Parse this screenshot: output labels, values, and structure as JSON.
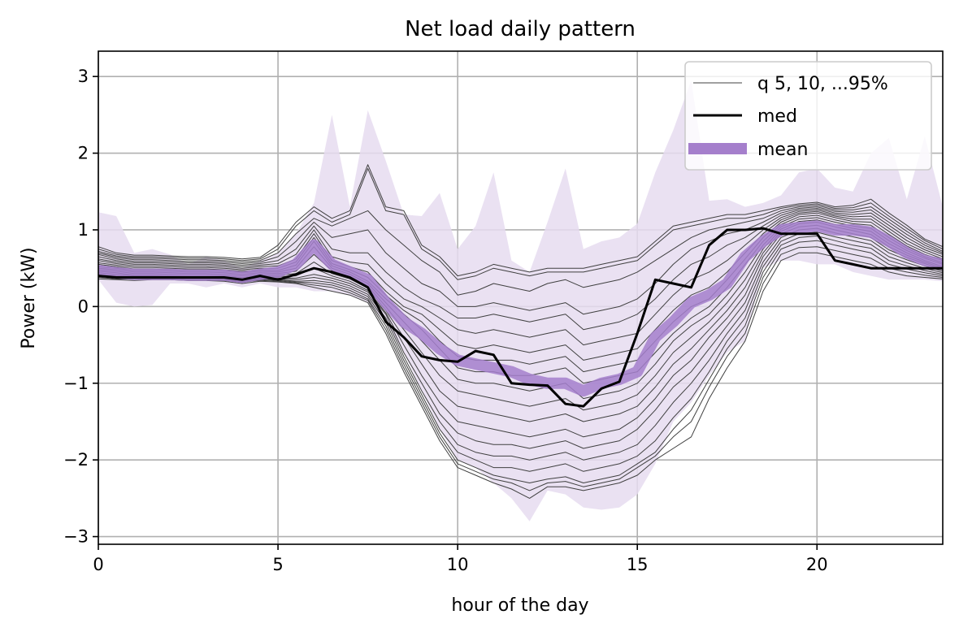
{
  "chart_data": {
    "type": "line",
    "title": "Net load daily pattern",
    "xlabel": "hour of the day",
    "ylabel": "Power (kW)",
    "xlim": [
      0,
      23.5
    ],
    "ylim": [
      -3.1,
      3.33
    ],
    "xticks": [
      0,
      5,
      10,
      15,
      20
    ],
    "yticks": [
      -3,
      -2,
      -1,
      0,
      1,
      2,
      3
    ],
    "ytick_labels": [
      "−3",
      "−2",
      "−1",
      "0",
      "1",
      "2",
      "3"
    ],
    "grid": true,
    "legend_position": "top-right",
    "legend": [
      "q 5, 10, ...95%",
      "med",
      "mean"
    ],
    "colors": {
      "quantile": "#404040",
      "median": "#000000",
      "mean": "#a57fcc",
      "band": "#e6dcf0"
    },
    "x": [
      0,
      0.5,
      1,
      1.5,
      2,
      2.5,
      3,
      3.5,
      4,
      4.5,
      5,
      5.5,
      6,
      6.5,
      7,
      7.5,
      8,
      8.5,
      9,
      9.5,
      10,
      10.5,
      11,
      11.5,
      12,
      12.5,
      13,
      13.5,
      14,
      14.5,
      15,
      15.5,
      16,
      16.5,
      17,
      17.5,
      18,
      18.5,
      19,
      19.5,
      20,
      20.5,
      21,
      21.5,
      22,
      22.5,
      23,
      23.5
    ],
    "band": {
      "upper": [
        1.23,
        1.18,
        0.7,
        0.75,
        0.68,
        0.55,
        0.65,
        0.6,
        0.5,
        0.6,
        0.7,
        0.95,
        1.35,
        2.5,
        1.3,
        2.56,
        1.9,
        1.2,
        1.18,
        1.48,
        0.75,
        1.05,
        1.75,
        0.6,
        0.45,
        1.1,
        1.8,
        0.75,
        0.85,
        0.9,
        1.08,
        1.75,
        2.3,
        2.95,
        1.38,
        1.4,
        1.3,
        1.35,
        1.45,
        1.75,
        1.8,
        1.55,
        1.5,
        2.0,
        2.2,
        1.4,
        2.22,
        1.3
      ],
      "lower": [
        0.35,
        0.05,
        0.0,
        0.02,
        0.3,
        0.3,
        0.25,
        0.3,
        0.25,
        0.3,
        0.25,
        0.25,
        0.2,
        0.2,
        0.15,
        0.05,
        -0.2,
        -0.6,
        -1.1,
        -1.6,
        -2.0,
        -2.1,
        -2.3,
        -2.5,
        -2.8,
        -2.4,
        -2.45,
        -2.62,
        -2.65,
        -2.62,
        -2.45,
        -2.05,
        -1.5,
        -1.25,
        -0.9,
        -0.6,
        -0.45,
        0.5,
        0.6,
        0.6,
        0.55,
        0.55,
        0.45,
        0.4,
        0.35,
        0.35,
        0.35,
        0.33
      ]
    },
    "quantiles": [
      [
        0.36,
        0.35,
        0.34,
        0.35,
        0.35,
        0.34,
        0.34,
        0.33,
        0.3,
        0.33,
        0.32,
        0.3,
        0.25,
        0.2,
        0.15,
        0.05,
        -0.35,
        -0.85,
        -1.3,
        -1.75,
        -2.1,
        -2.2,
        -2.3,
        -2.38,
        -2.5,
        -2.35,
        -2.35,
        -2.4,
        -2.35,
        -2.3,
        -2.2,
        -2.0,
        -1.85,
        -1.7,
        -1.2,
        -0.8,
        -0.45,
        0.2,
        0.6,
        0.7,
        0.7,
        0.65,
        0.6,
        0.55,
        0.45,
        0.4,
        0.38,
        0.36
      ],
      [
        0.38,
        0.36,
        0.36,
        0.36,
        0.36,
        0.35,
        0.35,
        0.34,
        0.32,
        0.34,
        0.33,
        0.31,
        0.28,
        0.25,
        0.18,
        0.08,
        -0.3,
        -0.8,
        -1.25,
        -1.7,
        -2.05,
        -2.15,
        -2.25,
        -2.3,
        -2.4,
        -2.3,
        -2.28,
        -2.35,
        -2.3,
        -2.25,
        -2.1,
        -1.95,
        -1.7,
        -1.5,
        -1.05,
        -0.65,
        -0.35,
        0.3,
        0.68,
        0.77,
        0.78,
        0.73,
        0.68,
        0.63,
        0.5,
        0.45,
        0.41,
        0.38
      ],
      [
        0.4,
        0.38,
        0.37,
        0.37,
        0.37,
        0.36,
        0.36,
        0.35,
        0.33,
        0.35,
        0.34,
        0.32,
        0.31,
        0.28,
        0.21,
        0.1,
        -0.25,
        -0.75,
        -1.2,
        -1.65,
        -2.0,
        -2.1,
        -2.2,
        -2.25,
        -2.3,
        -2.25,
        -2.22,
        -2.3,
        -2.25,
        -2.2,
        -2.05,
        -1.9,
        -1.6,
        -1.35,
        -0.95,
        -0.55,
        -0.25,
        0.38,
        0.75,
        0.84,
        0.86,
        0.8,
        0.75,
        0.7,
        0.55,
        0.49,
        0.44,
        0.4
      ],
      [
        0.42,
        0.4,
        0.39,
        0.39,
        0.38,
        0.37,
        0.37,
        0.36,
        0.34,
        0.36,
        0.35,
        0.33,
        0.34,
        0.31,
        0.24,
        0.13,
        -0.2,
        -0.7,
        -1.15,
        -1.6,
        -1.9,
        -2.0,
        -2.1,
        -2.1,
        -2.15,
        -2.1,
        -2.05,
        -2.15,
        -2.1,
        -2.05,
        -1.95,
        -1.75,
        -1.45,
        -1.2,
        -0.85,
        -0.45,
        -0.15,
        0.45,
        0.8,
        0.9,
        0.92,
        0.86,
        0.8,
        0.76,
        0.6,
        0.53,
        0.47,
        0.42
      ],
      [
        0.44,
        0.42,
        0.4,
        0.4,
        0.39,
        0.38,
        0.38,
        0.37,
        0.35,
        0.37,
        0.36,
        0.35,
        0.38,
        0.34,
        0.27,
        0.16,
        -0.15,
        -0.65,
        -1.1,
        -1.5,
        -1.8,
        -1.9,
        -1.95,
        -1.95,
        -2.0,
        -1.95,
        -1.9,
        -2.0,
        -1.95,
        -1.9,
        -1.8,
        -1.55,
        -1.25,
        -1.0,
        -0.7,
        -0.35,
        -0.05,
        0.52,
        0.85,
        0.95,
        0.97,
        0.91,
        0.86,
        0.81,
        0.65,
        0.57,
        0.5,
        0.44
      ],
      [
        0.46,
        0.44,
        0.41,
        0.41,
        0.4,
        0.39,
        0.39,
        0.38,
        0.36,
        0.38,
        0.37,
        0.37,
        0.42,
        0.37,
        0.3,
        0.19,
        -0.1,
        -0.6,
        -1.0,
        -1.4,
        -1.65,
        -1.75,
        -1.8,
        -1.8,
        -1.85,
        -1.8,
        -1.75,
        -1.85,
        -1.8,
        -1.75,
        -1.6,
        -1.35,
        -1.05,
        -0.85,
        -0.55,
        -0.25,
        0.05,
        0.58,
        0.9,
        1.0,
        1.02,
        0.96,
        0.91,
        0.86,
        0.7,
        0.61,
        0.53,
        0.46
      ],
      [
        0.48,
        0.46,
        0.43,
        0.43,
        0.42,
        0.41,
        0.41,
        0.4,
        0.38,
        0.4,
        0.39,
        0.4,
        0.5,
        0.4,
        0.33,
        0.21,
        -0.08,
        -0.5,
        -0.9,
        -1.25,
        -1.5,
        -1.55,
        -1.6,
        -1.65,
        -1.7,
        -1.65,
        -1.6,
        -1.7,
        -1.65,
        -1.6,
        -1.45,
        -1.2,
        -0.9,
        -0.7,
        -0.4,
        -0.15,
        0.15,
        0.65,
        0.95,
        1.04,
        1.06,
        1.0,
        0.95,
        0.9,
        0.74,
        0.64,
        0.56,
        0.48
      ],
      [
        0.5,
        0.48,
        0.45,
        0.45,
        0.44,
        0.43,
        0.43,
        0.42,
        0.4,
        0.42,
        0.41,
        0.43,
        0.58,
        0.43,
        0.36,
        0.24,
        -0.05,
        -0.4,
        -0.75,
        -1.1,
        -1.3,
        -1.35,
        -1.4,
        -1.45,
        -1.5,
        -1.45,
        -1.4,
        -1.5,
        -1.45,
        -1.4,
        -1.3,
        -1.05,
        -0.75,
        -0.55,
        -0.3,
        -0.05,
        0.25,
        0.7,
        0.98,
        1.08,
        1.1,
        1.04,
        0.99,
        0.94,
        0.78,
        0.67,
        0.58,
        0.5
      ],
      [
        0.52,
        0.5,
        0.47,
        0.47,
        0.46,
        0.45,
        0.45,
        0.44,
        0.42,
        0.44,
        0.43,
        0.46,
        0.68,
        0.47,
        0.39,
        0.27,
        0.0,
        -0.3,
        -0.6,
        -0.9,
        -1.1,
        -1.15,
        -1.2,
        -1.25,
        -1.3,
        -1.25,
        -1.2,
        -1.35,
        -1.3,
        -1.25,
        -1.15,
        -0.9,
        -0.6,
        -0.4,
        -0.2,
        0.05,
        0.35,
        0.75,
        1.01,
        1.11,
        1.13,
        1.07,
        1.02,
        0.98,
        0.82,
        0.7,
        0.6,
        0.52
      ],
      [
        0.55,
        0.52,
        0.49,
        0.49,
        0.48,
        0.47,
        0.47,
        0.46,
        0.44,
        0.46,
        0.45,
        0.5,
        0.78,
        0.5,
        0.42,
        0.3,
        0.05,
        -0.2,
        -0.45,
        -0.7,
        -0.95,
        -1.0,
        -1.0,
        -1.05,
        -1.1,
        -1.05,
        -1.0,
        -1.2,
        -1.15,
        -1.1,
        -1.0,
        -0.75,
        -0.45,
        -0.25,
        -0.1,
        0.15,
        0.45,
        0.8,
        1.04,
        1.14,
        1.16,
        1.1,
        1.05,
        1.02,
        0.86,
        0.73,
        0.63,
        0.55
      ],
      [
        0.57,
        0.54,
        0.51,
        0.51,
        0.5,
        0.49,
        0.49,
        0.48,
        0.46,
        0.48,
        0.47,
        0.54,
        0.85,
        0.53,
        0.45,
        0.33,
        0.1,
        -0.1,
        -0.3,
        -0.55,
        -0.8,
        -0.85,
        -0.85,
        -0.9,
        -0.9,
        -0.85,
        -0.8,
        -1.0,
        -0.95,
        -0.9,
        -0.85,
        -0.6,
        -0.35,
        -0.15,
        0.0,
        0.25,
        0.55,
        0.85,
        1.07,
        1.17,
        1.19,
        1.13,
        1.08,
        1.06,
        0.9,
        0.76,
        0.65,
        0.57
      ],
      [
        0.6,
        0.56,
        0.53,
        0.53,
        0.52,
        0.51,
        0.51,
        0.5,
        0.48,
        0.5,
        0.5,
        0.58,
        0.9,
        0.56,
        0.48,
        0.38,
        0.15,
        -0.05,
        -0.2,
        -0.45,
        -0.65,
        -0.7,
        -0.7,
        -0.7,
        -0.75,
        -0.7,
        -0.65,
        -0.85,
        -0.8,
        -0.75,
        -0.7,
        -0.45,
        -0.2,
        0.0,
        0.1,
        0.35,
        0.62,
        0.9,
        1.1,
        1.2,
        1.22,
        1.16,
        1.11,
        1.1,
        0.94,
        0.79,
        0.68,
        0.6
      ],
      [
        0.62,
        0.58,
        0.55,
        0.55,
        0.54,
        0.53,
        0.53,
        0.52,
        0.5,
        0.52,
        0.53,
        0.62,
        0.95,
        0.6,
        0.52,
        0.45,
        0.2,
        0.0,
        -0.1,
        -0.3,
        -0.5,
        -0.55,
        -0.5,
        -0.55,
        -0.6,
        -0.55,
        -0.5,
        -0.7,
        -0.65,
        -0.6,
        -0.55,
        -0.3,
        -0.05,
        0.15,
        0.25,
        0.45,
        0.7,
        0.95,
        1.13,
        1.22,
        1.24,
        1.18,
        1.14,
        1.14,
        0.98,
        0.82,
        0.71,
        0.62
      ],
      [
        0.65,
        0.6,
        0.57,
        0.57,
        0.56,
        0.55,
        0.55,
        0.54,
        0.52,
        0.54,
        0.56,
        0.68,
        1.0,
        0.65,
        0.58,
        0.55,
        0.3,
        0.1,
        0.0,
        -0.15,
        -0.3,
        -0.35,
        -0.3,
        -0.35,
        -0.4,
        -0.35,
        -0.3,
        -0.5,
        -0.45,
        -0.4,
        -0.35,
        -0.1,
        0.15,
        0.35,
        0.45,
        0.6,
        0.8,
        1.0,
        1.16,
        1.24,
        1.26,
        1.2,
        1.17,
        1.18,
        1.02,
        0.86,
        0.74,
        0.65
      ],
      [
        0.68,
        0.62,
        0.59,
        0.59,
        0.58,
        0.57,
        0.57,
        0.56,
        0.54,
        0.56,
        0.6,
        0.75,
        1.05,
        0.75,
        0.7,
        0.7,
        0.45,
        0.25,
        0.1,
        0.0,
        -0.15,
        -0.15,
        -0.1,
        -0.15,
        -0.2,
        -0.15,
        -0.1,
        -0.3,
        -0.25,
        -0.2,
        -0.1,
        0.1,
        0.35,
        0.55,
        0.65,
        0.8,
        0.9,
        1.05,
        1.19,
        1.26,
        1.28,
        1.22,
        1.2,
        1.22,
        1.06,
        0.9,
        0.77,
        0.68
      ],
      [
        0.7,
        0.64,
        0.61,
        0.61,
        0.6,
        0.59,
        0.59,
        0.58,
        0.56,
        0.58,
        0.65,
        0.85,
        1.1,
        0.9,
        0.95,
        1.0,
        0.7,
        0.5,
        0.3,
        0.2,
        0.0,
        0.0,
        0.05,
        0.0,
        -0.05,
        0.0,
        0.05,
        -0.1,
        -0.05,
        0.0,
        0.1,
        0.3,
        0.55,
        0.75,
        0.85,
        0.95,
        1.0,
        1.1,
        1.22,
        1.28,
        1.3,
        1.24,
        1.23,
        1.26,
        1.1,
        0.94,
        0.8,
        0.7
      ],
      [
        0.72,
        0.66,
        0.63,
        0.63,
        0.62,
        0.61,
        0.61,
        0.6,
        0.58,
        0.6,
        0.7,
        0.95,
        1.15,
        1.05,
        1.15,
        1.25,
        1.0,
        0.8,
        0.6,
        0.45,
        0.15,
        0.2,
        0.3,
        0.25,
        0.2,
        0.3,
        0.35,
        0.25,
        0.3,
        0.35,
        0.45,
        0.6,
        0.75,
        0.9,
        1.0,
        1.05,
        1.1,
        1.15,
        1.25,
        1.3,
        1.32,
        1.26,
        1.26,
        1.3,
        1.14,
        0.98,
        0.83,
        0.72
      ],
      [
        0.75,
        0.68,
        0.65,
        0.65,
        0.64,
        0.63,
        0.63,
        0.62,
        0.6,
        0.62,
        0.75,
        1.05,
        1.25,
        1.1,
        1.2,
        1.8,
        1.25,
        1.2,
        0.75,
        0.6,
        0.35,
        0.4,
        0.5,
        0.45,
        0.4,
        0.45,
        0.45,
        0.45,
        0.5,
        0.55,
        0.6,
        0.8,
        1.0,
        1.05,
        1.1,
        1.15,
        1.15,
        1.2,
        1.28,
        1.32,
        1.34,
        1.28,
        1.29,
        1.35,
        1.18,
        1.02,
        0.86,
        0.75
      ],
      [
        0.78,
        0.7,
        0.67,
        0.67,
        0.66,
        0.65,
        0.65,
        0.64,
        0.62,
        0.64,
        0.8,
        1.1,
        1.3,
        1.15,
        1.25,
        1.85,
        1.3,
        1.25,
        0.8,
        0.65,
        0.4,
        0.45,
        0.55,
        0.5,
        0.45,
        0.5,
        0.5,
        0.5,
        0.55,
        0.6,
        0.65,
        0.85,
        1.05,
        1.1,
        1.15,
        1.2,
        1.2,
        1.25,
        1.3,
        1.34,
        1.36,
        1.3,
        1.32,
        1.4,
        1.22,
        1.06,
        0.88,
        0.78
      ]
    ],
    "median": [
      0.4,
      0.38,
      0.38,
      0.38,
      0.38,
      0.38,
      0.38,
      0.38,
      0.35,
      0.4,
      0.35,
      0.42,
      0.5,
      0.45,
      0.38,
      0.25,
      -0.2,
      -0.4,
      -0.65,
      -0.7,
      -0.72,
      -0.58,
      -0.63,
      -1.0,
      -1.02,
      -1.03,
      -1.27,
      -1.3,
      -1.07,
      -0.98,
      -0.35,
      0.35,
      0.3,
      0.25,
      0.8,
      1.0,
      1.0,
      1.02,
      0.95,
      0.95,
      0.95,
      0.6,
      0.55,
      0.5,
      0.5,
      0.5,
      0.5,
      0.5
    ],
    "mean": [
      0.47,
      0.44,
      0.42,
      0.42,
      0.42,
      0.41,
      0.41,
      0.41,
      0.38,
      0.42,
      0.45,
      0.55,
      0.8,
      0.55,
      0.45,
      0.35,
      0.05,
      -0.2,
      -0.35,
      -0.55,
      -0.7,
      -0.75,
      -0.8,
      -0.85,
      -0.95,
      -1.0,
      -1.0,
      -1.1,
      -1.0,
      -0.95,
      -0.85,
      -0.4,
      -0.2,
      0.05,
      0.15,
      0.3,
      0.65,
      0.85,
      1.0,
      1.03,
      1.05,
      1.0,
      1.0,
      0.97,
      0.85,
      0.7,
      0.6,
      0.55
    ]
  }
}
